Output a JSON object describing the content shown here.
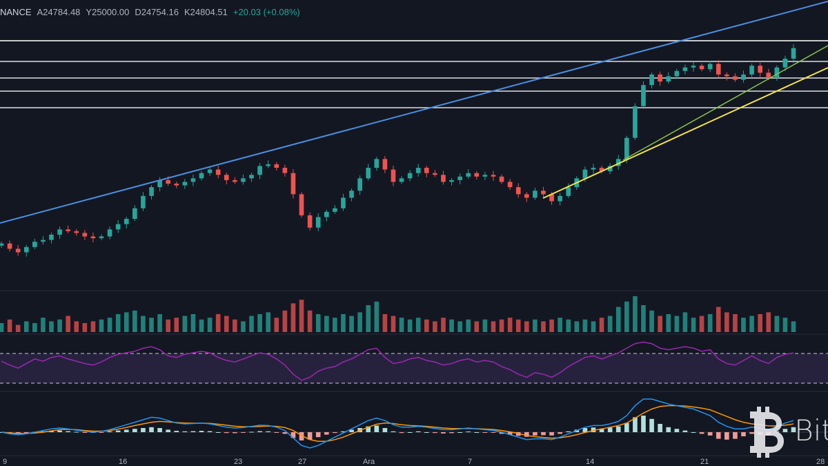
{
  "header": {
    "exchange": "NANCE",
    "open": "A24784.48",
    "high": "Y25000.00",
    "low": "D24754.16",
    "close": "K24804.51",
    "change": "+20.03 (+0.08%)"
  },
  "colors": {
    "background": "#131722",
    "up": "#26a69a",
    "down": "#ef5350",
    "blue_trendline": "#4a90e2",
    "green_trendline": "#8bc34a",
    "yellow_trendline": "#f5e642",
    "horizontal_lines": "#d8d8d8",
    "rsi": "#9c27b0",
    "macd": "#2196f3",
    "signal": "#ff9800"
  },
  "watermark": {
    "text": "Bitc",
    "icon": "bitcoin-logo-icon"
  },
  "chart_data": {
    "type": "candlestick",
    "x_ticks": [
      "9",
      "16",
      "23",
      "27",
      "Ara",
      "7",
      "14",
      "21",
      "28"
    ],
    "price_close_path": [
      19300,
      19150,
      19050,
      19200,
      19350,
      19400,
      19550,
      19700,
      19650,
      19600,
      19500,
      19450,
      19500,
      19700,
      19850,
      20000,
      20300,
      20650,
      20900,
      21100,
      21000,
      20950,
      21050,
      21150,
      21300,
      21400,
      21250,
      21100,
      21050,
      21150,
      21250,
      21500,
      21550,
      21450,
      21300,
      20700,
      20100,
      19750,
      20050,
      20200,
      20300,
      20600,
      20800,
      21150,
      21450,
      21700,
      21400,
      21050,
      21150,
      21300,
      21450,
      21300,
      21250,
      21050,
      21100,
      21200,
      21300,
      21200,
      21250,
      21200,
      21050,
      20900,
      20700,
      20600,
      20800,
      20700,
      20500,
      20650,
      20900,
      21150,
      21400,
      21450,
      21350,
      21500,
      21700,
      22300,
      23200,
      23800,
      24100,
      23900,
      24050,
      24200,
      24300,
      24350,
      24250,
      24400,
      24100,
      24050,
      23950,
      24100,
      24350,
      24150,
      24000,
      24300,
      24550,
      24850
    ],
    "volume_rel": [
      0.25,
      0.35,
      0.2,
      0.3,
      0.25,
      0.4,
      0.3,
      0.35,
      0.45,
      0.3,
      0.25,
      0.3,
      0.35,
      0.4,
      0.5,
      0.55,
      0.6,
      0.45,
      0.4,
      0.5,
      0.35,
      0.4,
      0.45,
      0.5,
      0.35,
      0.4,
      0.5,
      0.45,
      0.35,
      0.3,
      0.45,
      0.5,
      0.55,
      0.4,
      0.6,
      0.8,
      0.9,
      0.6,
      0.5,
      0.45,
      0.4,
      0.5,
      0.45,
      0.55,
      0.75,
      0.85,
      0.5,
      0.45,
      0.4,
      0.35,
      0.4,
      0.35,
      0.3,
      0.4,
      0.35,
      0.3,
      0.35,
      0.3,
      0.35,
      0.3,
      0.35,
      0.4,
      0.35,
      0.3,
      0.35,
      0.3,
      0.35,
      0.4,
      0.35,
      0.3,
      0.35,
      0.3,
      0.4,
      0.45,
      0.7,
      0.85,
      1.0,
      0.75,
      0.6,
      0.45,
      0.5,
      0.45,
      0.55,
      0.4,
      0.45,
      0.5,
      0.7,
      0.55,
      0.5,
      0.4,
      0.45,
      0.5,
      0.55,
      0.45,
      0.4,
      0.3
    ],
    "rsi": [
      55,
      50,
      46,
      52,
      58,
      55,
      60,
      62,
      58,
      55,
      52,
      50,
      54,
      60,
      64,
      66,
      68,
      72,
      74,
      70,
      62,
      60,
      64,
      66,
      68,
      66,
      60,
      56,
      54,
      58,
      62,
      66,
      64,
      58,
      50,
      38,
      30,
      34,
      42,
      46,
      48,
      54,
      58,
      64,
      70,
      72,
      60,
      52,
      54,
      58,
      60,
      56,
      54,
      50,
      52,
      56,
      58,
      54,
      56,
      54,
      48,
      44,
      38,
      34,
      40,
      38,
      34,
      40,
      48,
      54,
      60,
      62,
      58,
      62,
      66,
      72,
      78,
      80,
      78,
      72,
      70,
      72,
      74,
      72,
      68,
      70,
      58,
      52,
      50,
      56,
      62,
      56,
      52,
      60,
      64,
      66
    ],
    "rsi_band": [
      30,
      70
    ],
    "macd_hist": [
      0.0,
      -0.05,
      -0.08,
      -0.05,
      0.02,
      0.05,
      0.08,
      0.1,
      0.06,
      0.02,
      -0.02,
      -0.04,
      -0.02,
      0.05,
      0.1,
      0.15,
      0.2,
      0.25,
      0.3,
      0.25,
      0.15,
      0.08,
      0.05,
      0.06,
      0.08,
      0.06,
      0.0,
      -0.05,
      -0.06,
      -0.03,
      0.02,
      0.06,
      0.05,
      -0.02,
      -0.1,
      -0.35,
      -0.5,
      -0.45,
      -0.3,
      -0.15,
      -0.05,
      0.05,
      0.15,
      0.25,
      0.35,
      0.4,
      0.25,
      0.05,
      -0.05,
      0.0,
      0.05,
      0.0,
      -0.05,
      -0.08,
      -0.06,
      0.0,
      0.04,
      0.0,
      -0.02,
      -0.04,
      -0.1,
      -0.15,
      -0.22,
      -0.28,
      -0.2,
      -0.18,
      -0.2,
      -0.1,
      0.05,
      0.15,
      0.25,
      0.28,
      0.22,
      0.28,
      0.35,
      0.55,
      0.9,
      1.0,
      0.8,
      0.5,
      0.3,
      0.2,
      0.1,
      0.0,
      -0.1,
      -0.2,
      -0.4,
      -0.45,
      -0.4,
      -0.25,
      -0.1,
      -0.15,
      -0.2,
      0.05,
      0.2,
      0.3
    ],
    "macd_line": [
      0.0,
      -0.1,
      -0.15,
      -0.1,
      0.0,
      0.1,
      0.2,
      0.25,
      0.2,
      0.12,
      0.05,
      0.0,
      0.05,
      0.15,
      0.3,
      0.45,
      0.6,
      0.75,
      0.9,
      0.85,
      0.7,
      0.55,
      0.5,
      0.52,
      0.55,
      0.5,
      0.4,
      0.3,
      0.25,
      0.28,
      0.35,
      0.42,
      0.4,
      0.3,
      0.1,
      -0.35,
      -0.8,
      -0.95,
      -0.8,
      -0.55,
      -0.3,
      -0.05,
      0.2,
      0.45,
      0.7,
      0.85,
      0.7,
      0.45,
      0.3,
      0.3,
      0.35,
      0.3,
      0.22,
      0.15,
      0.15,
      0.2,
      0.25,
      0.2,
      0.15,
      0.1,
      0.0,
      -0.15,
      -0.3,
      -0.45,
      -0.4,
      -0.4,
      -0.45,
      -0.3,
      -0.1,
      0.1,
      0.3,
      0.4,
      0.4,
      0.5,
      0.65,
      1.0,
      1.6,
      2.0,
      2.0,
      1.85,
      1.7,
      1.6,
      1.5,
      1.4,
      1.2,
      1.0,
      0.6,
      0.35,
      0.2,
      0.2,
      0.3,
      0.25,
      0.15,
      0.35,
      0.55,
      0.7
    ],
    "signal_line": [
      0.0,
      -0.05,
      -0.08,
      -0.08,
      -0.05,
      0.0,
      0.08,
      0.15,
      0.17,
      0.15,
      0.1,
      0.06,
      0.06,
      0.1,
      0.18,
      0.28,
      0.4,
      0.5,
      0.6,
      0.65,
      0.62,
      0.58,
      0.55,
      0.54,
      0.54,
      0.53,
      0.48,
      0.42,
      0.36,
      0.33,
      0.33,
      0.35,
      0.37,
      0.35,
      0.28,
      0.1,
      -0.2,
      -0.45,
      -0.55,
      -0.55,
      -0.45,
      -0.3,
      -0.1,
      0.1,
      0.3,
      0.48,
      0.55,
      0.52,
      0.45,
      0.4,
      0.38,
      0.35,
      0.3,
      0.25,
      0.22,
      0.22,
      0.22,
      0.21,
      0.19,
      0.16,
      0.1,
      0.02,
      -0.08,
      -0.2,
      -0.27,
      -0.32,
      -0.36,
      -0.34,
      -0.26,
      -0.15,
      -0.02,
      0.1,
      0.2,
      0.3,
      0.4,
      0.55,
      0.85,
      1.15,
      1.4,
      1.55,
      1.6,
      1.6,
      1.58,
      1.52,
      1.45,
      1.35,
      1.15,
      0.95,
      0.75,
      0.6,
      0.5,
      0.45,
      0.38,
      0.38,
      0.42,
      0.5
    ]
  }
}
